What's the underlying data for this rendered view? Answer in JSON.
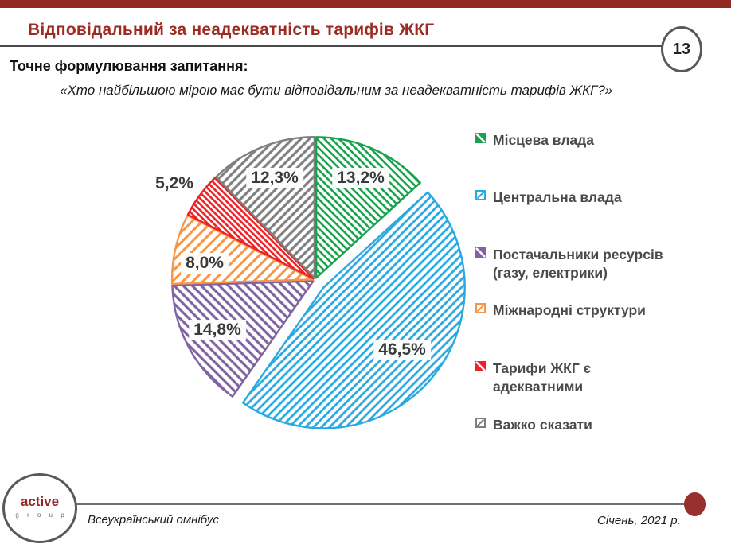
{
  "header": {
    "title": "Відповідальний за неадекватність тарифів ЖКГ",
    "page_number": "13",
    "question_label": "Точне формулювання запитання:",
    "question_text": "«Хто найбільшою мірою має бути відповідальним за неадекватність тарифів ЖКГ?»"
  },
  "chart_data": {
    "type": "pie",
    "start_angle_deg": 0,
    "direction": "clockwise",
    "categories": [
      "Місцева влада",
      "Центральна влада",
      "Постачальники ресурсів (газу, електрики)",
      "Міжнародні структури",
      "Тарифи ЖКГ є адекватними",
      "Важко сказати"
    ],
    "values": [
      13.2,
      46.5,
      14.8,
      8.0,
      5.2,
      12.3
    ],
    "labels": [
      "13,2%",
      "46,5%",
      "14,8%",
      "8,0%",
      "5,2%",
      "12,3%"
    ],
    "colors": [
      "#17A24C",
      "#29A9E1",
      "#8064A2",
      "#F79646",
      "#EC2227",
      "#7F7F7F"
    ],
    "hatch_directions": [
      "\\",
      "/",
      "\\",
      "/",
      "\\",
      "/"
    ],
    "fill_style": "diagonal-hatch",
    "exploded_slice": "Центральна влада",
    "legend_position": "right"
  },
  "legend": {
    "items": [
      {
        "lines": [
          "Місцева влада"
        ]
      },
      {
        "lines": [
          "Центральна влада"
        ]
      },
      {
        "lines": [
          "Постачальники ресурсів",
          "(газу, електрики)"
        ]
      },
      {
        "lines": [
          "Міжнародні структури"
        ]
      },
      {
        "lines": [
          "Тарифи ЖКГ є",
          "адекватними"
        ]
      },
      {
        "lines": [
          "Важко сказати"
        ]
      }
    ]
  },
  "footer": {
    "logo_line1": "active",
    "logo_line2": "g r o u p",
    "left_text": "Всеукраїнський омнібус",
    "right_text": "Січень, 2021 р."
  },
  "colors": {
    "top_bar_red": "#8F2922",
    "title_red": "#9C2B22",
    "header_rule_gray": "#4A4A4C",
    "footer_rule_gray": "#6D6E70",
    "footer_dot_red": "#97302E",
    "label_text_gray": "#3A3A3A"
  }
}
